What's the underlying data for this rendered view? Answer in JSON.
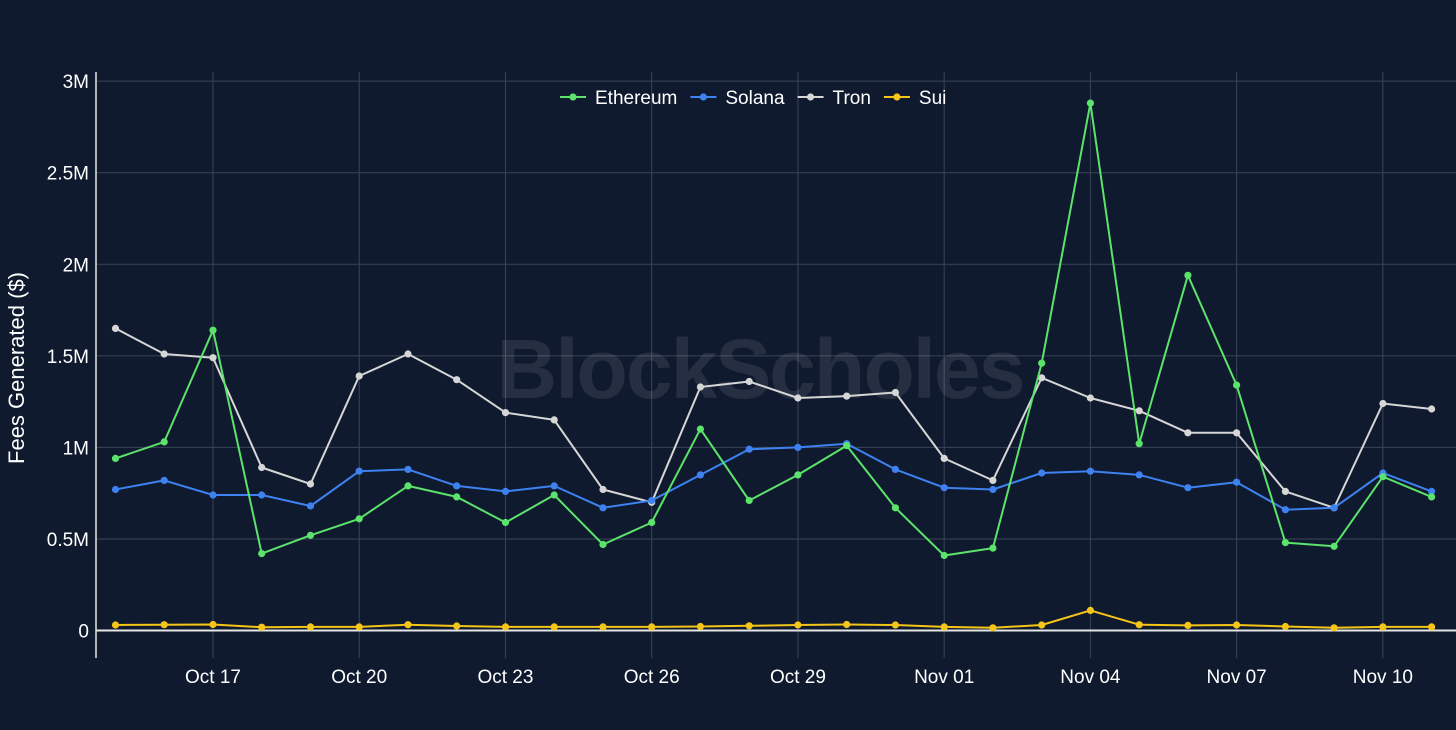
{
  "chart_data": {
    "type": "line",
    "title": "",
    "xlabel": "",
    "ylabel": "Fees Generated ($)",
    "watermark": "BlockScholes",
    "ylim": [
      -150000,
      3050000
    ],
    "xlim": [
      -2.4,
      25.5
    ],
    "yticks": [
      {
        "value": 0,
        "label": "0"
      },
      {
        "value": 500000,
        "label": "0.5M"
      },
      {
        "value": 1000000,
        "label": "1M"
      },
      {
        "value": 1500000,
        "label": "1.5M"
      },
      {
        "value": 2000000,
        "label": "2M"
      },
      {
        "value": 2500000,
        "label": "2.5M"
      },
      {
        "value": 3000000,
        "label": "3M"
      }
    ],
    "xticks": [
      {
        "value": 0,
        "label": "Oct 17"
      },
      {
        "value": 3,
        "label": "Oct 20"
      },
      {
        "value": 6,
        "label": "Oct 23"
      },
      {
        "value": 9,
        "label": "Oct 26"
      },
      {
        "value": 12,
        "label": "Oct 29"
      },
      {
        "value": 15,
        "label": "Nov 01"
      },
      {
        "value": 18,
        "label": "Nov 04"
      },
      {
        "value": 21,
        "label": "Nov 07"
      },
      {
        "value": 24,
        "label": "Nov 10"
      }
    ],
    "x": [
      -2,
      -1,
      0,
      1,
      2,
      3,
      4,
      5,
      6,
      7,
      8,
      9,
      10,
      11,
      12,
      13,
      14,
      15,
      16,
      17,
      18,
      19,
      20,
      21,
      22,
      23,
      24,
      25
    ],
    "legend_position": "top-center",
    "series": [
      {
        "name": "Ethereum",
        "color": "#5be36b",
        "values": [
          940000,
          1030000,
          1640000,
          420000,
          520000,
          610000,
          790000,
          730000,
          590000,
          740000,
          470000,
          590000,
          1100000,
          710000,
          850000,
          1010000,
          670000,
          410000,
          450000,
          1460000,
          2880000,
          1020000,
          1940000,
          1340000,
          480000,
          460000,
          840000,
          730000
        ]
      },
      {
        "name": "Solana",
        "color": "#3d82f0",
        "values": [
          770000,
          820000,
          740000,
          740000,
          680000,
          870000,
          880000,
          790000,
          760000,
          790000,
          670000,
          710000,
          850000,
          990000,
          1000000,
          1020000,
          880000,
          780000,
          770000,
          860000,
          870000,
          850000,
          780000,
          810000,
          660000,
          670000,
          860000,
          760000
        ]
      },
      {
        "name": "Tron",
        "color": "#d6d6d6",
        "values": [
          1650000,
          1510000,
          1490000,
          890000,
          800000,
          1390000,
          1510000,
          1370000,
          1190000,
          1150000,
          770000,
          700000,
          1330000,
          1360000,
          1270000,
          1280000,
          1300000,
          940000,
          820000,
          1380000,
          1270000,
          1200000,
          1080000,
          1080000,
          760000,
          670000,
          1240000,
          1210000
        ]
      },
      {
        "name": "Sui",
        "color": "#f5c518",
        "values": [
          30000,
          32000,
          33000,
          18000,
          20000,
          20000,
          32000,
          25000,
          20000,
          20000,
          20000,
          20000,
          22000,
          26000,
          30000,
          33000,
          30000,
          20000,
          15000,
          30000,
          110000,
          32000,
          28000,
          30000,
          22000,
          15000,
          20000,
          20000
        ]
      }
    ]
  }
}
